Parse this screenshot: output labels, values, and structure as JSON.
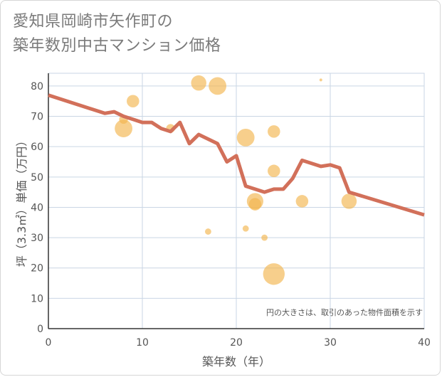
{
  "header": {
    "title_line1": "愛知県岡崎市矢作町の",
    "title_line2": "築年数別中古マンション価格"
  },
  "chart_data": {
    "type": "scatter",
    "title": "愛知県岡崎市矢作町の築年数別中古マンション価格",
    "xlabel": "築年数（年）",
    "ylabel": "坪（3.3㎡）単価（万円）",
    "xlim": [
      0,
      40
    ],
    "ylim": [
      0,
      85
    ],
    "xticks": [
      0,
      10,
      20,
      30,
      40
    ],
    "yticks": [
      0,
      10,
      20,
      30,
      40,
      50,
      60,
      70,
      80
    ],
    "grid": true,
    "note": "円の大きさは、取引のあった物件面積を示す",
    "colors": {
      "bubble": "#f2b54f",
      "trend": "#d2705a",
      "grid": "#c9d6e4"
    },
    "bubbles": [
      {
        "x": 8,
        "y": 66,
        "size": 4
      },
      {
        "x": 8,
        "y": 69,
        "size": 1
      },
      {
        "x": 9,
        "y": 75,
        "size": 2
      },
      {
        "x": 13,
        "y": 66,
        "size": 1
      },
      {
        "x": 16,
        "y": 81,
        "size": 3
      },
      {
        "x": 17,
        "y": 32,
        "size": 0.5
      },
      {
        "x": 18,
        "y": 80,
        "size": 4
      },
      {
        "x": 21,
        "y": 63,
        "size": 4
      },
      {
        "x": 21,
        "y": 33,
        "size": 0.5
      },
      {
        "x": 22,
        "y": 42,
        "size": 3.5
      },
      {
        "x": 22,
        "y": 41,
        "size": 2
      },
      {
        "x": 23,
        "y": 30,
        "size": 0.5
      },
      {
        "x": 24,
        "y": 65,
        "size": 2
      },
      {
        "x": 24,
        "y": 52,
        "size": 2
      },
      {
        "x": 24,
        "y": 18,
        "size": 6
      },
      {
        "x": 27,
        "y": 42,
        "size": 2
      },
      {
        "x": 29,
        "y": 82,
        "size": 0.1
      },
      {
        "x": 32,
        "y": 42,
        "size": 3
      }
    ],
    "trend": {
      "x": [
        0,
        6,
        7,
        8,
        9,
        10,
        11,
        12,
        13,
        14,
        15,
        16,
        17,
        18,
        19,
        20,
        21,
        22,
        23,
        24,
        25,
        26,
        27,
        28,
        29,
        30,
        31,
        32,
        40
      ],
      "y": [
        77,
        71,
        71.5,
        70,
        69,
        68,
        68,
        66,
        65,
        68,
        61,
        64,
        62.5,
        61,
        55,
        57,
        47,
        46,
        45,
        46,
        46,
        49.5,
        55.5,
        54.5,
        53.5,
        54,
        53,
        45,
        37.5
      ]
    }
  }
}
